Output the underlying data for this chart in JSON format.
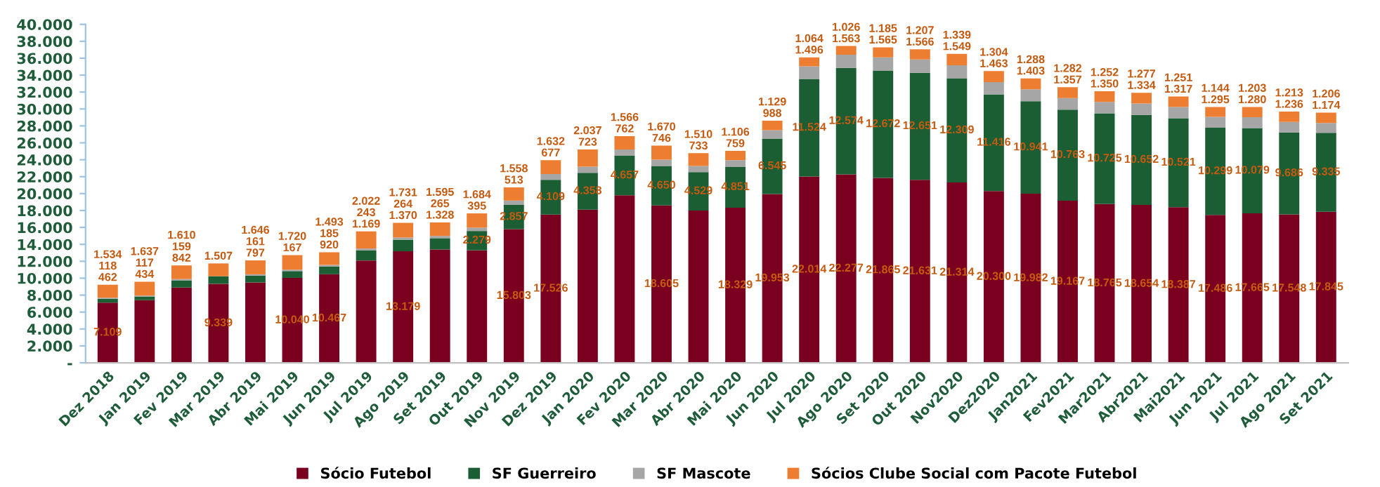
{
  "chart_data": {
    "type": "bar",
    "stacked": true,
    "legend": "bottom",
    "grid": false,
    "categories": [
      "Dez 2018",
      "Jan 2019",
      "Fev 2019",
      "Mar 2019",
      "Abr 2019",
      "Mai 2019",
      "Jun 2019",
      "Jul 2019",
      "Ago 2019",
      "Set 2019",
      "Out 2019",
      "Nov 2019",
      "Dez 2019",
      "Jan 2020",
      "Fev 2020",
      "Mar 2020",
      "Abr 2020",
      "Mai 2020",
      "Jun 2020",
      "Jul 2020",
      "Ago 2020",
      "Set 2020",
      "Out 2020",
      "Nov2020",
      "Dez2020",
      "Jan2021",
      "Fev2021",
      "Mar2021",
      "Abr2021",
      "Mai2021",
      "Jun 2021",
      "Jul 2021",
      "Ago 2021",
      "Set 2021"
    ],
    "ylim": [
      0,
      40000
    ],
    "yticks": [
      {
        "value": 0,
        "label": "-"
      },
      {
        "value": 2000,
        "label": "2.000"
      },
      {
        "value": 4000,
        "label": "4.000"
      },
      {
        "value": 6000,
        "label": "6.000"
      },
      {
        "value": 8000,
        "label": "8.000"
      },
      {
        "value": 10000,
        "label": "10.000"
      },
      {
        "value": 12000,
        "label": "12.000"
      },
      {
        "value": 14000,
        "label": "14.000"
      },
      {
        "value": 16000,
        "label": "16.000"
      },
      {
        "value": 18000,
        "label": "18.000"
      },
      {
        "value": 20000,
        "label": "20.000"
      },
      {
        "value": 22000,
        "label": "22.000"
      },
      {
        "value": 24000,
        "label": "24.000"
      },
      {
        "value": 26000,
        "label": "26.000"
      },
      {
        "value": 28000,
        "label": "28.000"
      },
      {
        "value": 30000,
        "label": "30.000"
      },
      {
        "value": 32000,
        "label": "32.000"
      },
      {
        "value": 34000,
        "label": "34.000"
      },
      {
        "value": 36000,
        "label": "36.000"
      },
      {
        "value": 38000,
        "label": "38.000"
      },
      {
        "value": 40000,
        "label": "40.000"
      }
    ],
    "series": [
      {
        "name": "Sócio Futebol",
        "color": "#7a0020",
        "values": [
          7109,
          7400,
          8900,
          9339,
          9500,
          10040,
          10467,
          12100,
          13179,
          13400,
          13300,
          15803,
          17526,
          18100,
          19800,
          18605,
          18000,
          18329,
          19953,
          22014,
          22277,
          21865,
          21631,
          21314,
          20300,
          19982,
          19167,
          18765,
          18654,
          18387,
          17486,
          17665,
          17548,
          17845
        ],
        "value_labels": [
          "7.109",
          null,
          null,
          "9.339",
          null,
          "10.040",
          "10.467",
          null,
          "13.179",
          null,
          null,
          "15.803",
          "17.526",
          null,
          null,
          "18.605",
          null,
          "18.329",
          "19.953",
          "22.014",
          "22.277",
          "21.865",
          "21.631",
          "21.314",
          "20.300",
          "19.982",
          "19.167",
          "18.765",
          "18.654",
          "18.387",
          "17.486",
          "17.665",
          "17.548",
          "17.845"
        ]
      },
      {
        "name": "SF Guerreiro",
        "color": "#1b5e34",
        "values": [
          462,
          434,
          842,
          900,
          797,
          800,
          920,
          1169,
          1370,
          1328,
          2279,
          2857,
          4109,
          4358,
          4657,
          4650,
          4529,
          4851,
          6545,
          11524,
          12574,
          12672,
          12651,
          12309,
          11416,
          10941,
          10763,
          10725,
          10652,
          10521,
          10299,
          10079,
          9686,
          9335
        ],
        "value_labels": [
          "462",
          "434",
          "842",
          null,
          "797",
          null,
          "920",
          "1.169",
          "1.370",
          "1.328",
          "2.279",
          "2.857",
          "4.109",
          "4.358",
          "4.657",
          "4.650",
          "4.529",
          "4.851",
          "6.545",
          "11.524",
          "12.574",
          "12.672",
          "12.651",
          "12.309",
          "11.416",
          "10.941",
          "10.763",
          "10.725",
          "10.652",
          "10.521",
          "10.299",
          "10.079",
          "9.686",
          "9.335"
        ]
      },
      {
        "name": "SF Mascote",
        "color": "#a6a6a6",
        "values": [
          118,
          117,
          159,
          null,
          161,
          167,
          185,
          243,
          264,
          265,
          395,
          513,
          677,
          723,
          762,
          746,
          733,
          759,
          988,
          1496,
          1563,
          1565,
          1566,
          1549,
          1463,
          1403,
          1357,
          1350,
          1334,
          1317,
          1295,
          1280,
          1236,
          1174
        ],
        "value_labels": [
          "118",
          "117",
          "159",
          null,
          "161",
          "167",
          "185",
          "243",
          "264",
          "265",
          "395",
          "513",
          "677",
          "723",
          "762",
          "746",
          "733",
          "759",
          "988",
          "1.496",
          "1.563",
          "1.565",
          "1.566",
          "1.549",
          "1.463",
          "1.403",
          "1.357",
          "1.350",
          "1.334",
          "1.317",
          "1.295",
          "1.280",
          "1.236",
          "1.174"
        ]
      },
      {
        "name": "Sócios Clube Social com Pacote Futebol",
        "color": "#ed7d31",
        "values": [
          1534,
          1637,
          1610,
          1507,
          1646,
          1720,
          1493,
          2022,
          1731,
          1595,
          1684,
          1558,
          1632,
          2037,
          1566,
          1670,
          1510,
          1106,
          1129,
          1064,
          1026,
          1185,
          1207,
          1339,
          1304,
          1288,
          1282,
          1252,
          1277,
          1251,
          1144,
          1203,
          1213,
          1206
        ],
        "value_labels": [
          "1.534",
          "1.637",
          "1.610",
          "1.507",
          "1.646",
          "1.720",
          "1.493",
          "2.022",
          "1.731",
          "1.595",
          "1.684",
          "1.558",
          "1.632",
          "2.037",
          "1.566",
          "1.670",
          "1.510",
          "1.106",
          "1.129",
          "1.064",
          "1.026",
          "1.185",
          "1.207",
          "1.339",
          "1.304",
          "1.288",
          "1.282",
          "1.252",
          "1.277",
          "1.251",
          "1.144",
          "1.203",
          "1.213",
          "1.206"
        ]
      }
    ]
  }
}
